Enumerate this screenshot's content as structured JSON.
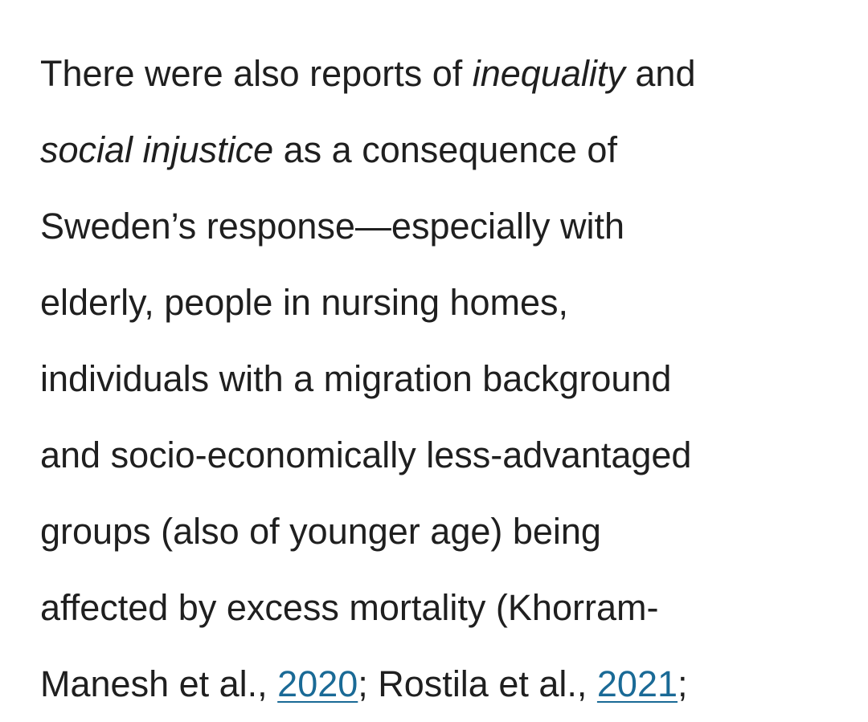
{
  "paragraph": {
    "line1": {
      "before": "There were also reports of ",
      "em": "inequality",
      "after": " and"
    },
    "line2": {
      "em": "social injustice",
      "after": " as a consequence of"
    },
    "line3": "Sweden’s response—especially with",
    "line4": "elderly, people in nursing homes,",
    "line5": "individuals with a migration background",
    "line6": "and socio-economically less-advantaged",
    "line7": "groups (also of younger age) being",
    "line8": "affected by excess mortality (Khorram-",
    "line9": {
      "cite1_text": "Manesh et al., ",
      "cite1_year": "2020",
      "sep": "; Rostila et al., ",
      "cite2_year": "2021",
      "end": ";"
    }
  }
}
